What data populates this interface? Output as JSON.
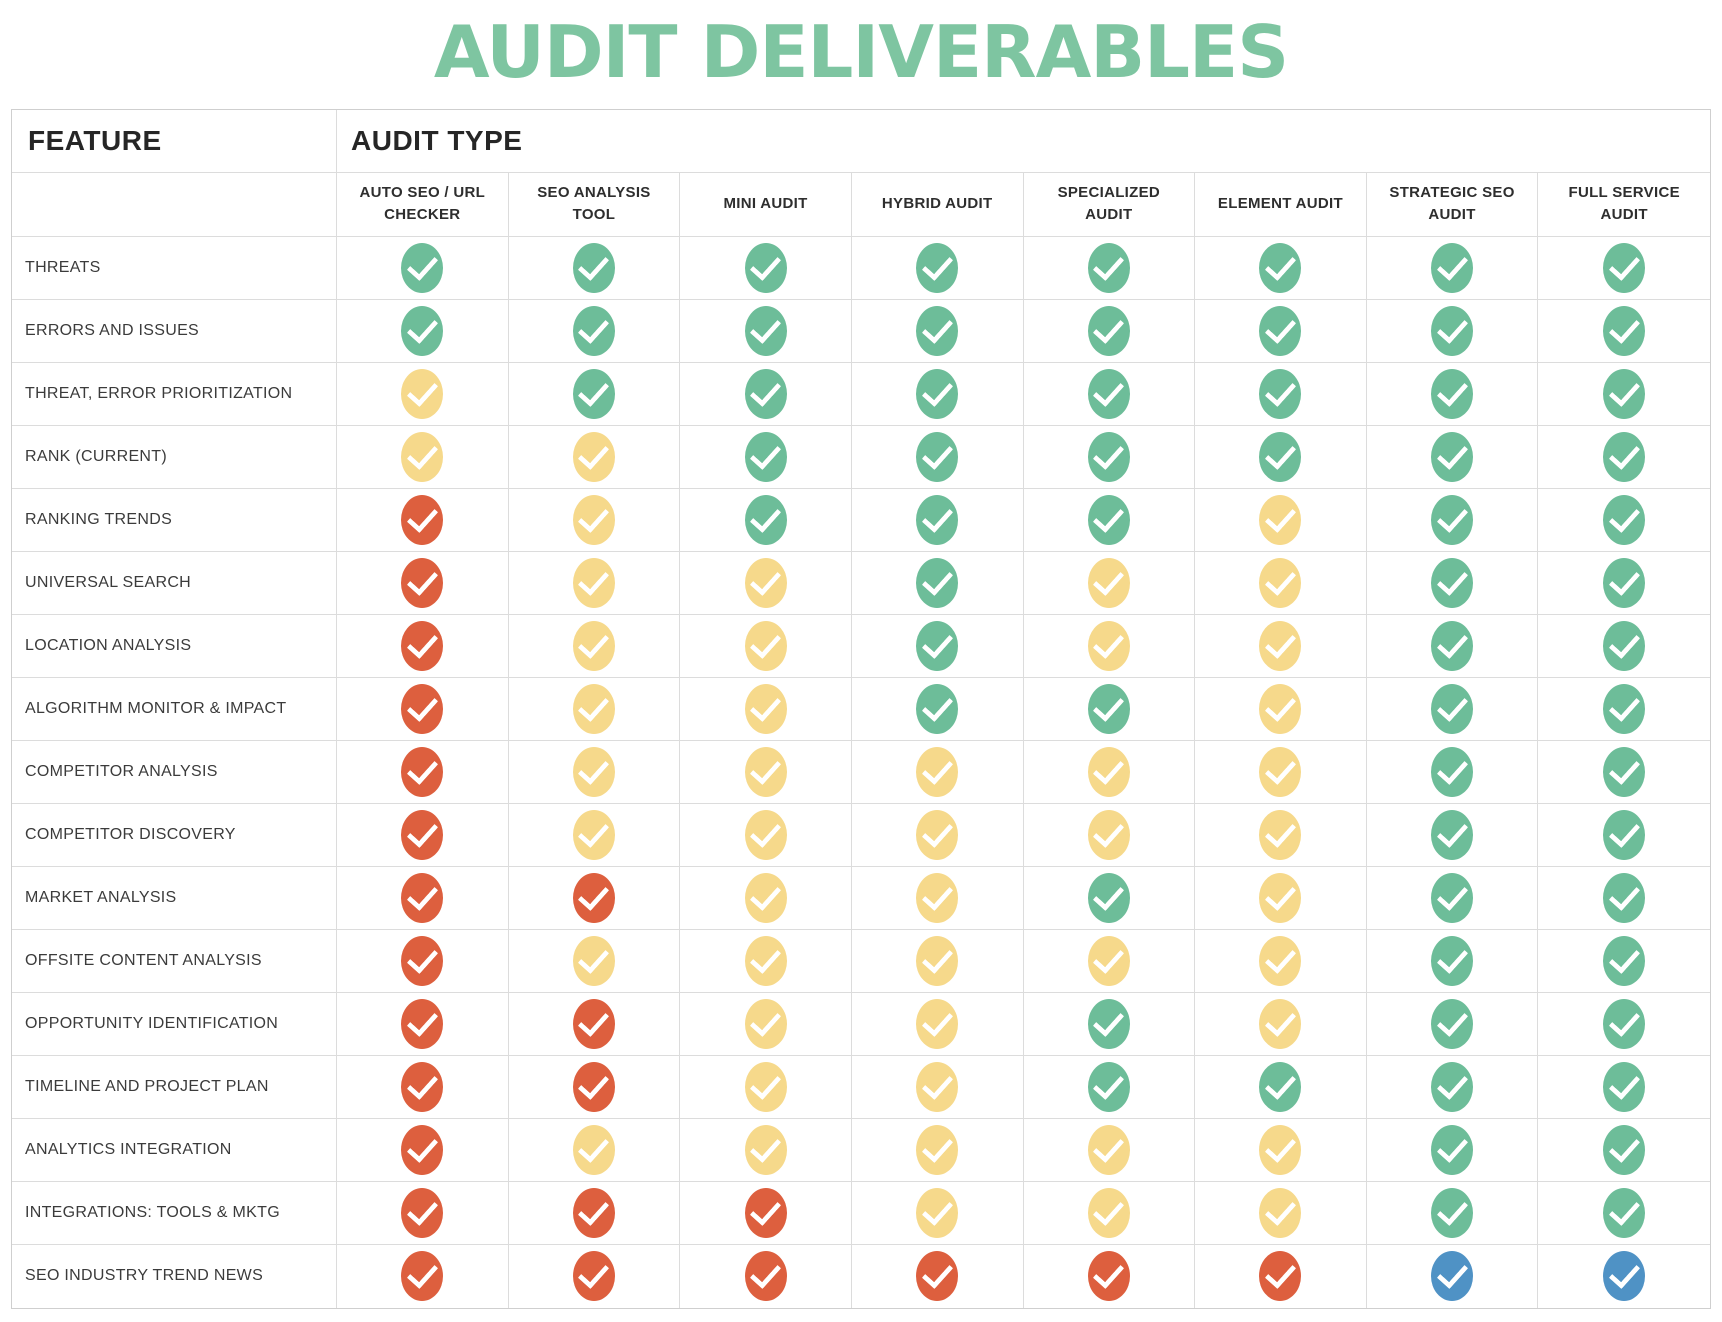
{
  "title": "AUDIT DELIVERABLES",
  "theme": {
    "title_color": "#7ec5a1",
    "header_text_color": "#262626",
    "feature_text_color": "#3b3b3b",
    "grid_line_color": "#dcdcdc",
    "check_colors": {
      "green": "#6dbd99",
      "yellow": "#f6d98b",
      "red": "#dd5f3e",
      "blue": "#4f92c5"
    }
  },
  "chart_data": {
    "type": "table",
    "title": "AUDIT DELIVERABLES",
    "row_header": "FEATURE",
    "column_group_header": "AUDIT TYPE",
    "cell_encoding": "colored check-circle icon per cell (green | yellow | red | blue)",
    "columns": [
      "AUTO SEO / URL CHECKER",
      "SEO ANALYSIS TOOL",
      "MINI AUDIT",
      "HYBRID AUDIT",
      "SPECIALIZED AUDIT",
      "ELEMENT AUDIT",
      "STRATEGIC SEO AUDIT",
      "FULL SERVICE AUDIT"
    ],
    "rows": [
      {
        "feature": "THREATS",
        "checks": [
          "green",
          "green",
          "green",
          "green",
          "green",
          "green",
          "green",
          "green"
        ]
      },
      {
        "feature": "ERRORS AND ISSUES",
        "checks": [
          "green",
          "green",
          "green",
          "green",
          "green",
          "green",
          "green",
          "green"
        ]
      },
      {
        "feature": "THREAT, ERROR PRIORITIZATION",
        "checks": [
          "yellow",
          "green",
          "green",
          "green",
          "green",
          "green",
          "green",
          "green"
        ]
      },
      {
        "feature": "RANK (CURRENT)",
        "checks": [
          "yellow",
          "yellow",
          "green",
          "green",
          "green",
          "green",
          "green",
          "green"
        ]
      },
      {
        "feature": "RANKING TRENDS",
        "checks": [
          "red",
          "yellow",
          "green",
          "green",
          "green",
          "yellow",
          "green",
          "green"
        ]
      },
      {
        "feature": "UNIVERSAL SEARCH",
        "checks": [
          "red",
          "yellow",
          "yellow",
          "green",
          "yellow",
          "yellow",
          "green",
          "green"
        ]
      },
      {
        "feature": "LOCATION ANALYSIS",
        "checks": [
          "red",
          "yellow",
          "yellow",
          "green",
          "yellow",
          "yellow",
          "green",
          "green"
        ]
      },
      {
        "feature": "ALGORITHM MONITOR & IMPACT",
        "checks": [
          "red",
          "yellow",
          "yellow",
          "green",
          "green",
          "yellow",
          "green",
          "green"
        ]
      },
      {
        "feature": "COMPETITOR ANALYSIS",
        "checks": [
          "red",
          "yellow",
          "yellow",
          "yellow",
          "yellow",
          "yellow",
          "green",
          "green"
        ]
      },
      {
        "feature": "COMPETITOR DISCOVERY",
        "checks": [
          "red",
          "yellow",
          "yellow",
          "yellow",
          "yellow",
          "yellow",
          "green",
          "green"
        ]
      },
      {
        "feature": "MARKET ANALYSIS",
        "checks": [
          "red",
          "red",
          "yellow",
          "yellow",
          "green",
          "yellow",
          "green",
          "green"
        ]
      },
      {
        "feature": "OFFSITE CONTENT ANALYSIS",
        "checks": [
          "red",
          "yellow",
          "yellow",
          "yellow",
          "yellow",
          "yellow",
          "green",
          "green"
        ]
      },
      {
        "feature": "OPPORTUNITY IDENTIFICATION",
        "checks": [
          "red",
          "red",
          "yellow",
          "yellow",
          "green",
          "yellow",
          "green",
          "green"
        ]
      },
      {
        "feature": "TIMELINE AND PROJECT PLAN",
        "checks": [
          "red",
          "red",
          "yellow",
          "yellow",
          "green",
          "green",
          "green",
          "green"
        ]
      },
      {
        "feature": "ANALYTICS INTEGRATION",
        "checks": [
          "red",
          "yellow",
          "yellow",
          "yellow",
          "yellow",
          "yellow",
          "green",
          "green"
        ]
      },
      {
        "feature": "INTEGRATIONS: TOOLS & MKTG",
        "checks": [
          "red",
          "red",
          "red",
          "yellow",
          "yellow",
          "yellow",
          "green",
          "green"
        ]
      },
      {
        "feature": "SEO INDUSTRY TREND NEWS",
        "checks": [
          "red",
          "red",
          "red",
          "red",
          "red",
          "red",
          "blue",
          "blue"
        ]
      }
    ]
  }
}
